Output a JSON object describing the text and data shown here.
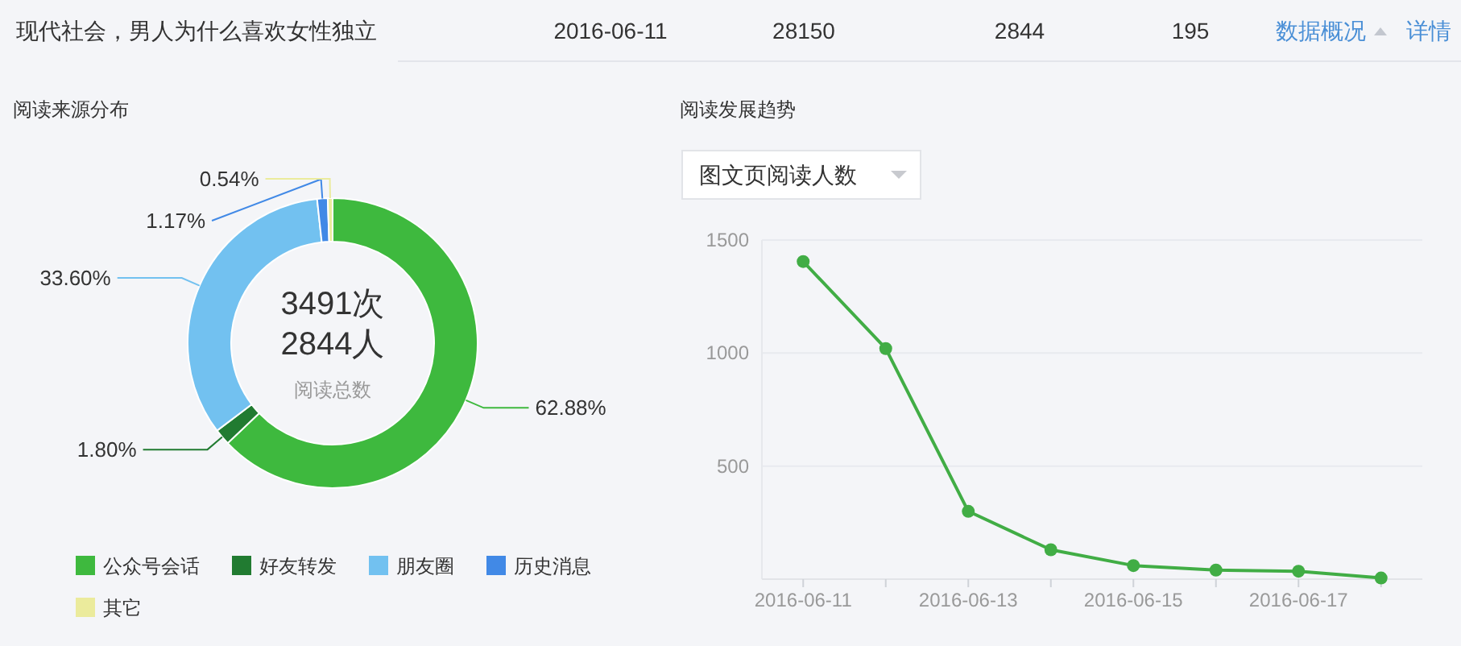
{
  "chart_data": [
    {
      "type": "other",
      "title": "现代社会，男人为什么喜欢女性独立",
      "annotations": [
        "2016-06-11",
        "28150",
        "2844",
        "195",
        "数据概况",
        "详情"
      ]
    },
    {
      "type": "donut",
      "title": "阅读来源分布",
      "categories": [
        "公众号会话",
        "好友转发",
        "朋友圈",
        "历史消息",
        "其它"
      ],
      "values": [
        62.88,
        1.8,
        33.6,
        1.17,
        0.54
      ],
      "colors": [
        "#3eb93e",
        "#217b31",
        "#72c1f0",
        "#4189e6",
        "#ebeb9c"
      ],
      "value_labels": [
        "62.88%",
        "1.80%",
        "33.60%",
        "1.17%",
        "0.54%"
      ],
      "annotations": [
        "3491次",
        "2844人",
        "阅读总数"
      ],
      "legend": "bottom"
    },
    {
      "type": "line",
      "title": "阅读发展趋势",
      "subtitle": "图文页阅读人数",
      "x": [
        "2016-06-11",
        "2016-06-12",
        "2016-06-13",
        "2016-06-14",
        "2016-06-15",
        "2016-06-16",
        "2016-06-17",
        "2016-06-18"
      ],
      "values": [
        1405,
        1020,
        300,
        130,
        60,
        40,
        35,
        5
      ],
      "color": "#41ad45",
      "marker": "circle",
      "grid": "y",
      "xlim": [
        "2016-06-10T12:00",
        "2016-06-18T12:00"
      ],
      "xticks": [
        {
          "value": "2016-06-11",
          "label": "2016-06-11"
        },
        {
          "value": "2016-06-12",
          "label": null
        },
        {
          "value": "2016-06-13",
          "label": "2016-06-13"
        },
        {
          "value": "2016-06-14",
          "label": null
        },
        {
          "value": "2016-06-15",
          "label": "2016-06-15"
        },
        {
          "value": "2016-06-16",
          "label": null
        },
        {
          "value": "2016-06-17",
          "label": "2016-06-17"
        },
        {
          "value": "2016-06-18",
          "label": null
        }
      ],
      "ylim": [
        0,
        1500
      ],
      "yticks": [
        500,
        1000,
        1500
      ]
    }
  ]
}
